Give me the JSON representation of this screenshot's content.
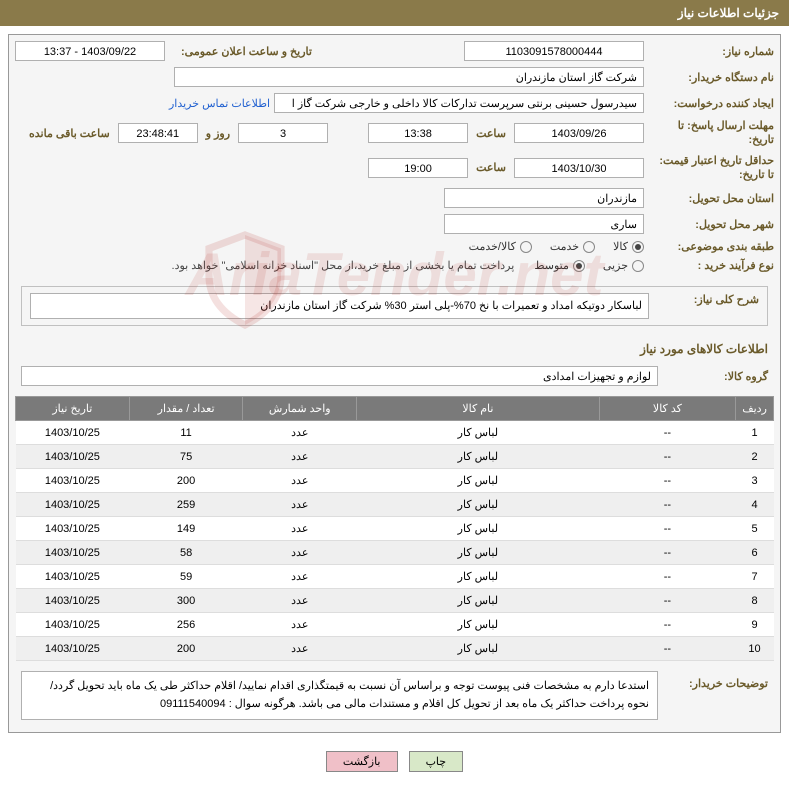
{
  "title": "جزئیات اطلاعات نیاز",
  "labels": {
    "need_no": "شماره نیاز:",
    "announce_dt": "تاریخ و ساعت اعلان عمومی:",
    "buyer_org": "نام دستگاه خریدار:",
    "requester": "ایجاد کننده درخواست:",
    "deadline": "مهلت ارسال پاسخ: تا تاریخ:",
    "hour": "ساعت",
    "days_and": "روز و",
    "remaining": "ساعت باقی مانده",
    "validity": "حداقل تاریخ اعتبار قیمت: تا تاریخ:",
    "delivery_province": "استان محل تحویل:",
    "delivery_city": "شهر محل تحویل:",
    "subject_cat": "طبقه بندی موضوعی:",
    "process_type": "نوع فرآیند خرید :",
    "general_desc": "شرح کلی نیاز:",
    "goods_info": "اطلاعات کالاهای مورد نیاز",
    "goods_group": "گروه کالا:",
    "buyer_notes": "توضیحات خریدار:",
    "contact_link": "اطلاعات تماس خریدار"
  },
  "fields": {
    "need_no": "1103091578000444",
    "announce_dt": "1403/09/22 - 13:37",
    "buyer_org": "شرکت گاز استان مازندران",
    "requester": "سیدرسول حسینی برنتی سرپرست تدارکات کالا داخلی و خارجی  شرکت گاز ا",
    "deadline_date": "1403/09/26",
    "deadline_time": "13:38",
    "remaining_days": "3",
    "remaining_time": "23:48:41",
    "validity_date": "1403/10/30",
    "validity_time": "19:00",
    "province": "مازندران",
    "city": "ساری",
    "general_desc": "لباسکار دوتیکه امداد و تعمیرات با نخ 70%-پلی استر 30% شرکت گاز استان مازندران",
    "goods_group": "لوازم و تجهیزات امدادی",
    "payment_note": "پرداخت تمام یا بخشی از مبلغ خرید،از محل \"اسناد خزانه اسلامی\" خواهد بود.",
    "buyer_notes": "استدعا دارم به مشخصات فنی پیوست توجه و براساس آن نسبت به قیمتگذاری اقدام نمایید/ اقلام حداکثر طی یک ماه باید تحویل گردد/ نحوه پرداخت حداکثر یک ماه بعد از تحویل کل اقلام و مستندات مالی می باشد. هرگونه سوال : 09111540094"
  },
  "subject_radios": [
    {
      "label": "کالا",
      "checked": true
    },
    {
      "label": "خدمت",
      "checked": false
    },
    {
      "label": "کالا/خدمت",
      "checked": false
    }
  ],
  "process_radios": [
    {
      "label": "جزیی",
      "checked": false
    },
    {
      "label": "متوسط",
      "checked": true
    }
  ],
  "table": {
    "columns": [
      "ردیف",
      "کد کالا",
      "نام کالا",
      "واحد شمارش",
      "تعداد / مقدار",
      "تاریخ نیاز"
    ],
    "col_widths": [
      "5%",
      "18%",
      "32%",
      "15%",
      "15%",
      "15%"
    ],
    "rows": [
      [
        "1",
        "--",
        "لباس کار",
        "عدد",
        "11",
        "1403/10/25"
      ],
      [
        "2",
        "--",
        "لباس کار",
        "عدد",
        "75",
        "1403/10/25"
      ],
      [
        "3",
        "--",
        "لباس کار",
        "عدد",
        "200",
        "1403/10/25"
      ],
      [
        "4",
        "--",
        "لباس کار",
        "عدد",
        "259",
        "1403/10/25"
      ],
      [
        "5",
        "--",
        "لباس کار",
        "عدد",
        "149",
        "1403/10/25"
      ],
      [
        "6",
        "--",
        "لباس کار",
        "عدد",
        "58",
        "1403/10/25"
      ],
      [
        "7",
        "--",
        "لباس کار",
        "عدد",
        "59",
        "1403/10/25"
      ],
      [
        "8",
        "--",
        "لباس کار",
        "عدد",
        "300",
        "1403/10/25"
      ],
      [
        "9",
        "--",
        "لباس کار",
        "عدد",
        "256",
        "1403/10/25"
      ],
      [
        "10",
        "--",
        "لباس کار",
        "عدد",
        "200",
        "1403/10/25"
      ]
    ]
  },
  "buttons": {
    "print": "چاپ",
    "back": "بازگشت"
  },
  "watermark": "AriaTender.net",
  "styling": {
    "title_bg": "#8a7a4a",
    "title_fg": "#ffffff",
    "label_color": "#6a5a2a",
    "link_color": "#2060d0",
    "th_bg": "#7a7a7a",
    "th_fg": "#ffffff",
    "row_odd_bg": "#ffffff",
    "row_even_bg": "#efefef",
    "btn_print_bg": "#d8e8c8",
    "btn_back_bg": "#f0c0c8",
    "content_bg": "#f5f5f5",
    "field_bg": "#ffffff",
    "border_color": "#b0b0b0",
    "font_family": "Tahoma",
    "base_font_size": 11
  }
}
